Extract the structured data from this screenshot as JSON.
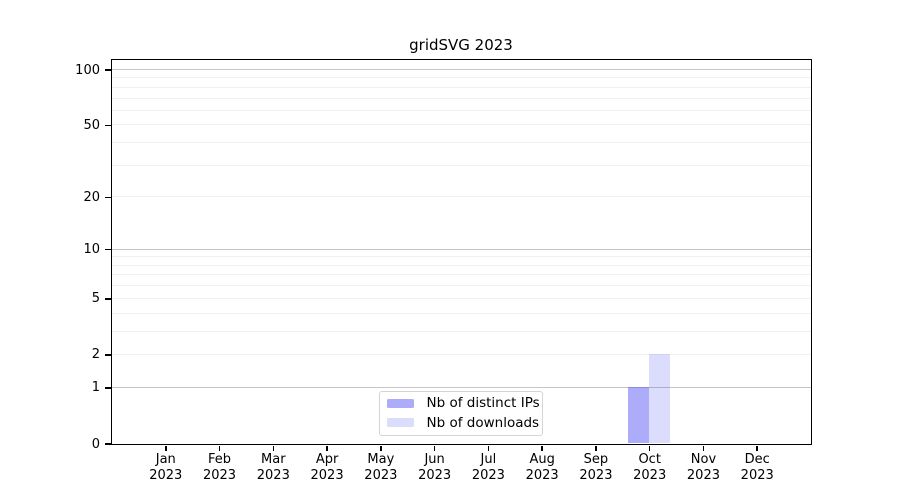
{
  "colors": {
    "background": "#ffffff",
    "axis": "#000000",
    "major_grid": "#c5c5c5",
    "minor_grid": "#f0f0f0",
    "legend_border": "#d4d4d4",
    "bar_distinct_ips_hex": "#aaaaf8",
    "bar_downloads_hex": "#dbdbf8"
  },
  "chart_data": {
    "type": "bar",
    "title": "gridSVG 2023",
    "year_label": "2023",
    "categories": [
      "Jan",
      "Feb",
      "Mar",
      "Apr",
      "May",
      "Jun",
      "Jul",
      "Aug",
      "Sep",
      "Oct",
      "Nov",
      "Dec"
    ],
    "series": [
      {
        "name": "Nb of distinct IPs",
        "color": "#aaaaf8",
        "fill": "rgba(70,70,245,0.45)",
        "values": [
          0,
          0,
          0,
          0,
          0,
          0,
          0,
          0,
          0,
          1,
          0,
          0
        ]
      },
      {
        "name": "Nb of downloads",
        "color": "#dbdbf8",
        "fill": "rgba(70,70,245,0.19)",
        "values": [
          0,
          0,
          0,
          0,
          0,
          0,
          0,
          0,
          0,
          2,
          0,
          0
        ]
      }
    ],
    "xlabel": "",
    "ylabel": "",
    "yscale": "log1p",
    "ylim": [
      0,
      113
    ],
    "yticks": [
      0,
      1,
      2,
      5,
      10,
      20,
      50,
      100
    ],
    "gridlines": {
      "major": [
        1,
        10,
        100
      ],
      "minor": [
        2,
        3,
        4,
        5,
        6,
        7,
        8,
        9,
        20,
        30,
        40,
        50,
        60,
        70,
        80,
        90
      ]
    },
    "grid": true,
    "legend_position": "lower center"
  }
}
